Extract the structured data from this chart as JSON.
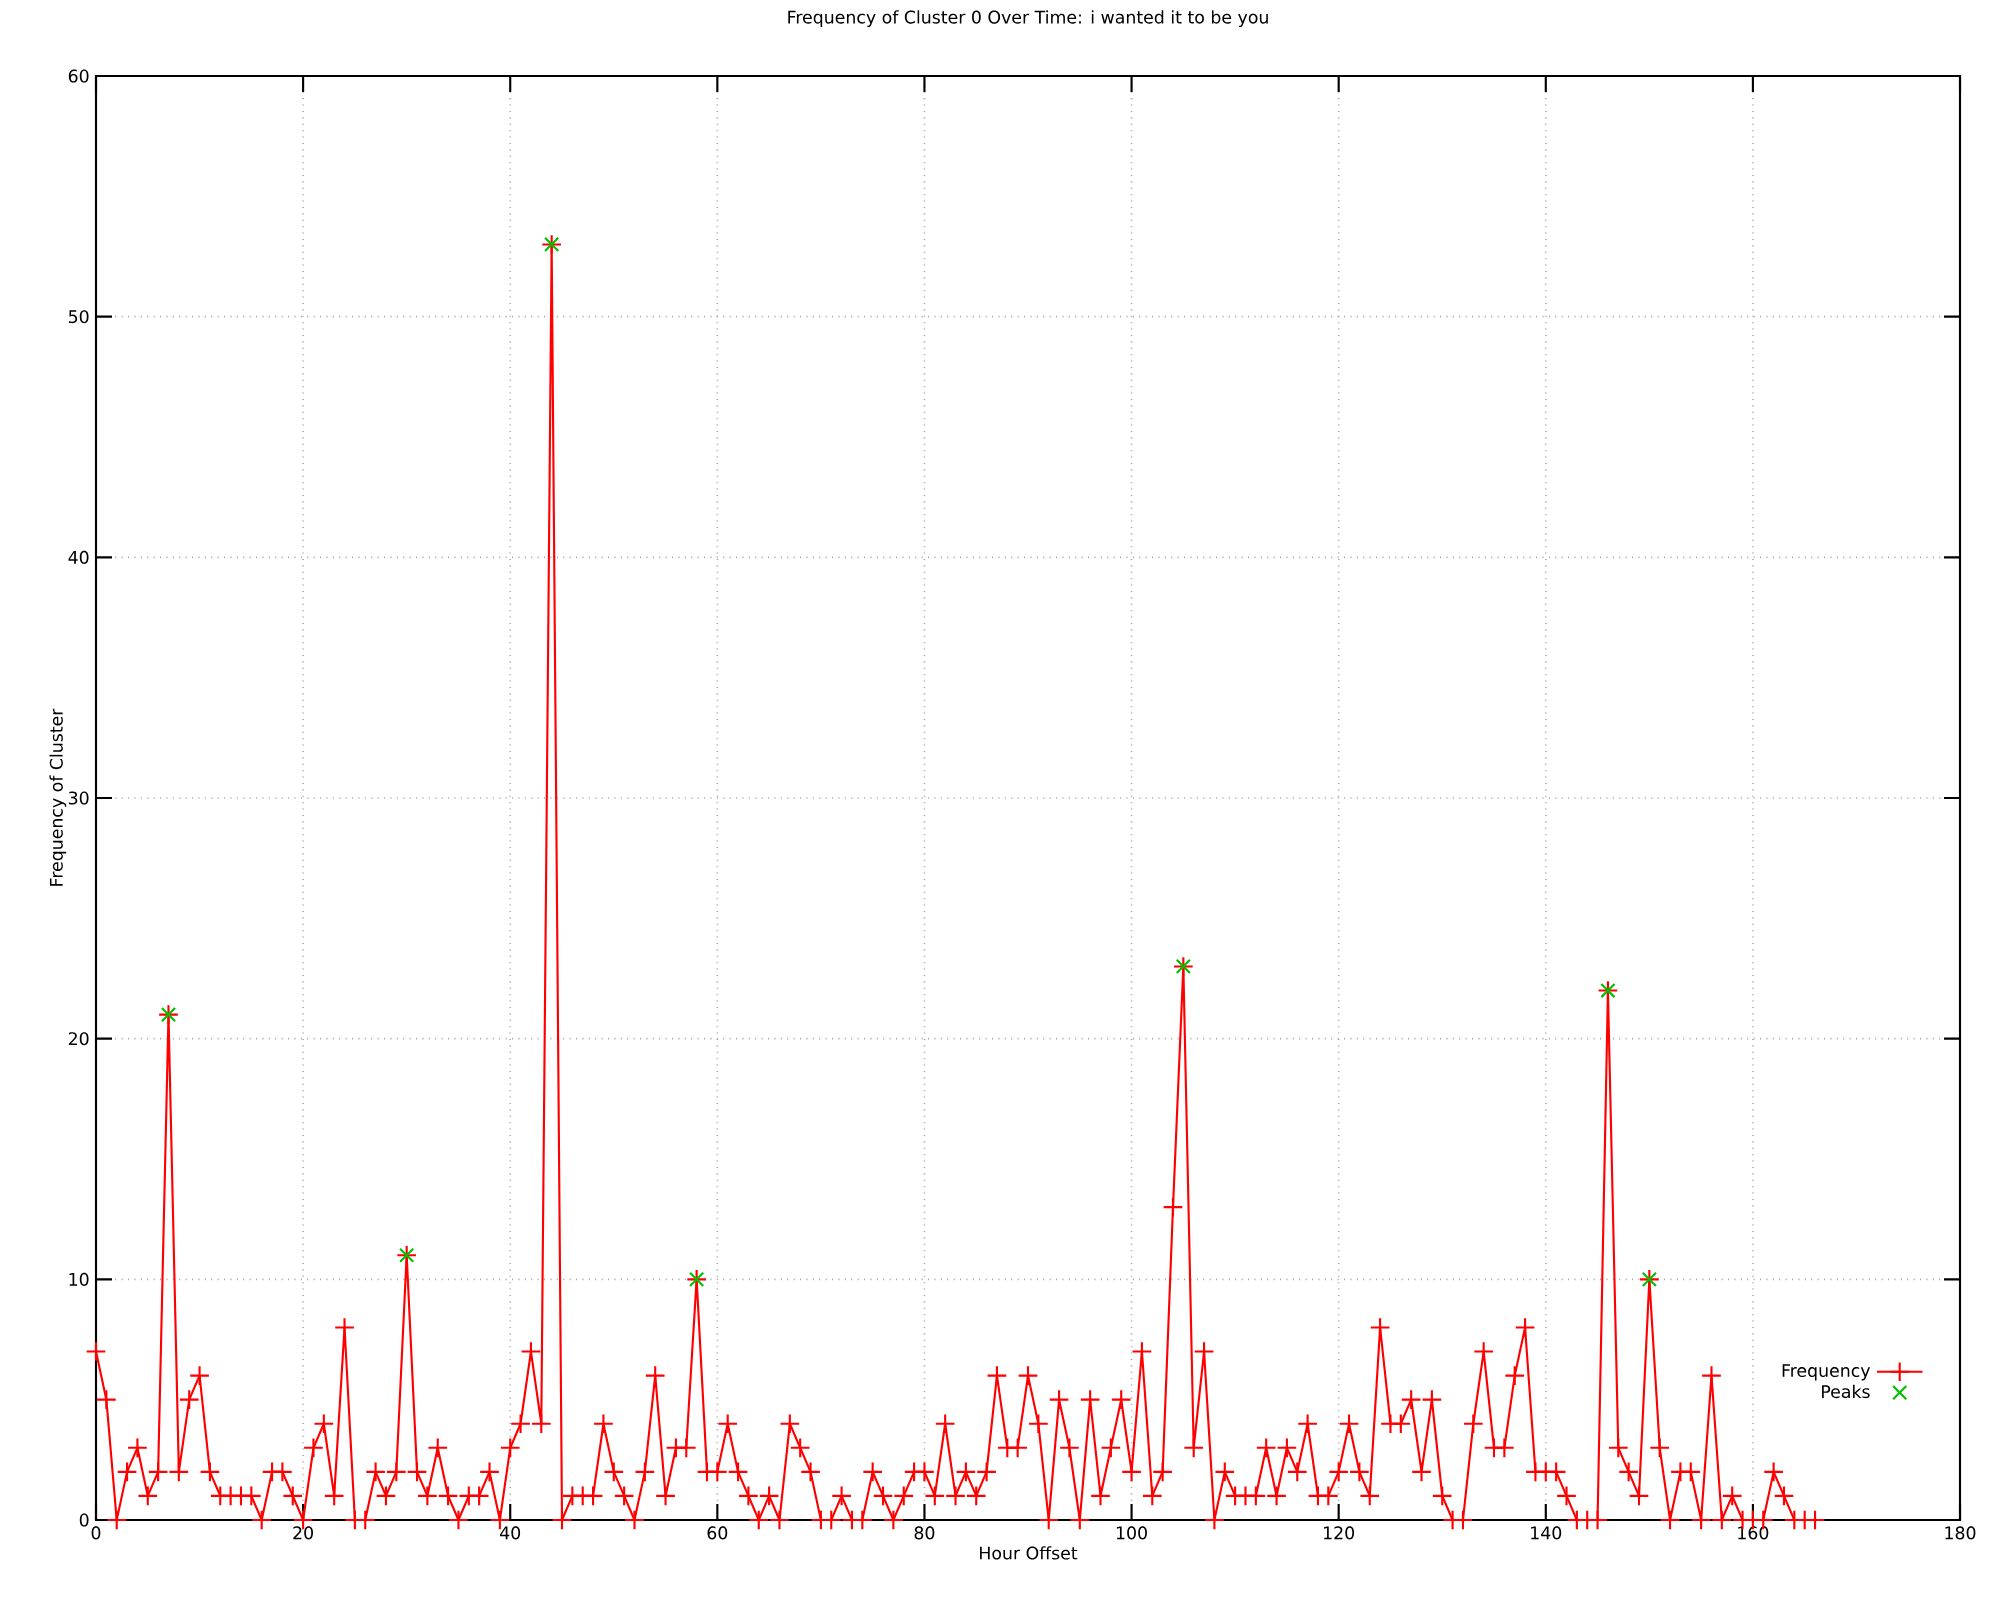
{
  "chart_data": {
    "type": "line",
    "title": "Frequency of Cluster 0 Over Time: i wanted it to be you",
    "xlabel": "Hour Offset",
    "ylabel": "Frequency of Cluster",
    "xlim": [
      0,
      180
    ],
    "ylim": [
      0,
      60
    ],
    "xticks": [
      0,
      20,
      40,
      60,
      80,
      100,
      120,
      140,
      160,
      180
    ],
    "yticks": [
      0,
      10,
      20,
      30,
      40,
      50,
      60
    ],
    "grid": true,
    "legend": "bottom right",
    "line_style": "solid",
    "series": [
      {
        "name": "Frequency",
        "color": "#ff0000",
        "marker": "cross",
        "x": [
          0,
          1,
          2,
          3,
          4,
          5,
          6,
          7,
          8,
          9,
          10,
          11,
          12,
          13,
          14,
          15,
          16,
          17,
          18,
          19,
          20,
          21,
          22,
          23,
          24,
          25,
          26,
          27,
          28,
          29,
          30,
          31,
          32,
          33,
          34,
          35,
          36,
          37,
          38,
          39,
          40,
          41,
          42,
          43,
          44,
          45,
          46,
          47,
          48,
          49,
          50,
          51,
          52,
          53,
          54,
          55,
          56,
          57,
          58,
          59,
          60,
          61,
          62,
          63,
          64,
          65,
          66,
          67,
          68,
          69,
          70,
          71,
          72,
          73,
          74,
          75,
          76,
          77,
          78,
          79,
          80,
          81,
          82,
          83,
          84,
          85,
          86,
          87,
          88,
          89,
          90,
          91,
          92,
          93,
          94,
          95,
          96,
          97,
          98,
          99,
          100,
          101,
          102,
          103,
          104,
          105,
          106,
          107,
          108,
          109,
          110,
          111,
          112,
          113,
          114,
          115,
          116,
          117,
          118,
          119,
          120,
          121,
          122,
          123,
          124,
          125,
          126,
          127,
          128,
          129,
          130,
          131,
          132,
          133,
          134,
          135,
          136,
          137,
          138,
          139,
          140,
          141,
          142,
          143,
          144,
          145,
          146,
          147,
          148,
          149,
          150,
          151,
          152,
          153,
          154,
          155,
          156,
          157,
          158,
          159,
          160,
          161,
          162,
          163,
          164,
          165,
          166
        ],
        "values": [
          7,
          5,
          0,
          2,
          3,
          1,
          2,
          21,
          2,
          5,
          6,
          2,
          1,
          1,
          1,
          1,
          0,
          2,
          2,
          1,
          0,
          3,
          4,
          1,
          8,
          0,
          0,
          2,
          1,
          2,
          11,
          2,
          1,
          3,
          1,
          0,
          1,
          1,
          2,
          0,
          3,
          4,
          7,
          4,
          53,
          0,
          1,
          1,
          1,
          4,
          2,
          1,
          0,
          2,
          6,
          1,
          3,
          3,
          10,
          2,
          2,
          4,
          2,
          1,
          0,
          1,
          0,
          4,
          3,
          2,
          0,
          0,
          1,
          0,
          0,
          2,
          1,
          0,
          1,
          2,
          2,
          1,
          4,
          1,
          2,
          1,
          2,
          6,
          3,
          3,
          6,
          4,
          0,
          5,
          3,
          0,
          5,
          1,
          3,
          5,
          2,
          7,
          1,
          2,
          13,
          23,
          3,
          7,
          0,
          2,
          1,
          1,
          1,
          3,
          1,
          3,
          2,
          4,
          1,
          1,
          2,
          4,
          2,
          1,
          8,
          4,
          4,
          5,
          2,
          5,
          1,
          0,
          0,
          4,
          7,
          3,
          3,
          6,
          8,
          2,
          2,
          2,
          1,
          0,
          0,
          0,
          22,
          3,
          2,
          1,
          10,
          3,
          0,
          2,
          2,
          0,
          6,
          0,
          1,
          0,
          0,
          0,
          2,
          1,
          0,
          0,
          0
        ]
      },
      {
        "name": "Peaks",
        "type": "scatter",
        "color": "#00c000",
        "marker": "cross",
        "x": [
          7,
          30,
          44,
          58,
          105,
          146,
          150
        ],
        "values": [
          21,
          11,
          53,
          10,
          23,
          22,
          10
        ]
      }
    ]
  }
}
